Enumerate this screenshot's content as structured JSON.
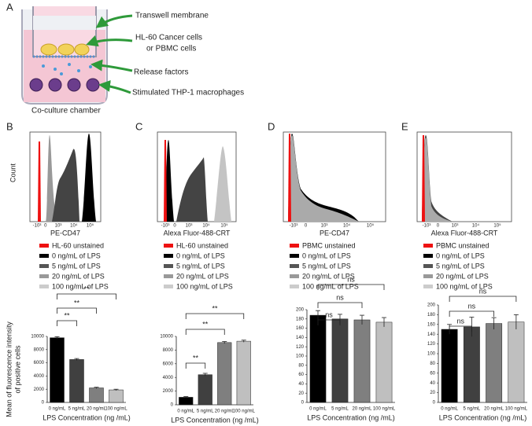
{
  "panel_labels": [
    "A",
    "B",
    "C",
    "D",
    "E"
  ],
  "diagram": {
    "labels": [
      "Transwell membrane",
      "HL-60 Cancer cells",
      "or PBMC cells",
      "Release factors",
      "Stimulated THP-1 macrophages"
    ],
    "caption": "Co-culture chamber"
  },
  "flow_panels": [
    {
      "y_label": "Count",
      "x_label": "PE-CD47",
      "x_tick_labels": [
        "-10³",
        "0",
        "10³",
        "10⁴",
        "10⁵"
      ],
      "legend": [
        "HL-60 unstained",
        "0 ng/mL of LPS",
        "5 ng/mL of LPS",
        "20 ng/mL of LPS",
        "100 ng/mL of LPS"
      ],
      "legend_colors": [
        "#ee1111",
        "#000000",
        "#555555",
        "#999999",
        "#cccccc"
      ]
    },
    {
      "x_label": "Alexa Fluor-488-CRT",
      "x_tick_labels": [
        "-10³",
        "0",
        "10³",
        "10⁴",
        "10⁵"
      ],
      "legend": [
        "HL-60 unstained",
        "0 ng/mL of LPS",
        "5 ng/mL of LPS",
        "20 ng/mL of LPS",
        "100 ng/mL of LPS"
      ],
      "legend_colors": [
        "#ee1111",
        "#000000",
        "#555555",
        "#999999",
        "#cccccc"
      ]
    },
    {
      "x_label": "PE-CD47",
      "x_tick_labels": [
        "-10³",
        "0",
        "10³",
        "10⁴",
        "10⁵"
      ],
      "legend": [
        "PBMC unstained",
        "0 ng/mL of LPS",
        "5 ng/mL of LPS",
        "20 ng/mL of LPS",
        "100 ng/mL of LPS"
      ],
      "legend_colors": [
        "#ee1111",
        "#000000",
        "#555555",
        "#999999",
        "#cccccc"
      ]
    },
    {
      "x_label": "Alexa Fluor-488-CRT",
      "x_tick_labels": [
        "-10³",
        "0",
        "10³",
        "10⁴",
        "10⁵"
      ],
      "legend": [
        "PBMC unstained",
        "0 ng/mL of LPS",
        "5 ng/mL of LPS",
        "20 ng/mL of LPS",
        "100 ng/mL of LPS"
      ],
      "legend_colors": [
        "#ee1111",
        "#000000",
        "#555555",
        "#999999",
        "#cccccc"
      ]
    }
  ],
  "chart_data": [
    {
      "type": "bar",
      "y_label": [
        "Mean of fluorescence intensity",
        "of positive cells"
      ],
      "x_label": "LPS Concentration (ng /mL)",
      "categories": [
        "0 ng/mL",
        "5 ng/mL",
        "20 ng/mL",
        "100 ng/mL"
      ],
      "values": [
        9800,
        6500,
        2200,
        1900
      ],
      "errors": [
        150,
        150,
        100,
        100
      ],
      "colors": [
        "#000000",
        "#404040",
        "#7f7f7f",
        "#bfbfbf"
      ],
      "ylim": [
        0,
        10000
      ],
      "yticks": [
        0,
        2000,
        4000,
        6000,
        8000,
        10000
      ],
      "annotations": [
        {
          "text": "**",
          "from": "0 ng/mL",
          "to": "5 ng/mL"
        },
        {
          "text": "**",
          "from": "0 ng/mL",
          "to": "20 ng/mL"
        },
        {
          "text": "**",
          "from": "0 ng/mL",
          "to": "100 ng/mL"
        }
      ]
    },
    {
      "type": "bar",
      "x_label": "LPS Concentration (ng /mL)",
      "categories": [
        "0 ng/mL",
        "5 ng/mL",
        "20 ng/mL",
        "100 ng/mL"
      ],
      "values": [
        1100,
        4400,
        9100,
        9300
      ],
      "errors": [
        100,
        200,
        150,
        150
      ],
      "colors": [
        "#000000",
        "#404040",
        "#7f7f7f",
        "#bfbfbf"
      ],
      "ylim": [
        0,
        10000
      ],
      "yticks": [
        0,
        2000,
        4000,
        6000,
        8000,
        10000
      ],
      "annotations": [
        {
          "text": "**",
          "from": "0 ng/mL",
          "to": "5 ng/mL"
        },
        {
          "text": "**",
          "from": "0 ng/mL",
          "to": "20 ng/mL"
        },
        {
          "text": "**",
          "from": "0 ng/mL",
          "to": "100 ng/mL"
        }
      ]
    },
    {
      "type": "bar",
      "x_label": "LPS Concentration (ng /mL)",
      "categories": [
        "0 ng/mL",
        "5 ng/mL",
        "20 ng/mL",
        "100 ng/mL"
      ],
      "values": [
        188,
        180,
        178,
        173
      ],
      "errors": [
        10,
        10,
        10,
        10
      ],
      "colors": [
        "#000000",
        "#404040",
        "#7f7f7f",
        "#bfbfbf"
      ],
      "ylim": [
        0,
        200
      ],
      "yticks": [
        0,
        20,
        40,
        60,
        80,
        100,
        120,
        140,
        160,
        180,
        200
      ],
      "annotations": [
        {
          "text": "ns",
          "from": "0 ng/mL",
          "to": "5 ng/mL"
        },
        {
          "text": "ns",
          "from": "0 ng/mL",
          "to": "20 ng/mL"
        },
        {
          "text": "ns",
          "from": "0 ng/mL",
          "to": "100 ng/mL"
        }
      ]
    },
    {
      "type": "bar",
      "x_label": "LPS Concentration (ng /mL)",
      "categories": [
        "0 ng/mL",
        "5 ng/mL",
        "20 ng/mL",
        "100 ng/mL"
      ],
      "values": [
        150,
        155,
        162,
        165
      ],
      "errors": [
        10,
        20,
        12,
        15
      ],
      "colors": [
        "#000000",
        "#404040",
        "#7f7f7f",
        "#bfbfbf"
      ],
      "ylim": [
        0,
        200
      ],
      "yticks": [
        0,
        20,
        40,
        60,
        80,
        100,
        120,
        140,
        160,
        180,
        200
      ],
      "annotations": [
        {
          "text": "ns",
          "from": "0 ng/mL",
          "to": "5 ng/mL"
        },
        {
          "text": "ns",
          "from": "0 ng/mL",
          "to": "20 ng/mL"
        },
        {
          "text": "ns",
          "from": "0 ng/mL",
          "to": "100 ng/mL"
        }
      ]
    }
  ]
}
